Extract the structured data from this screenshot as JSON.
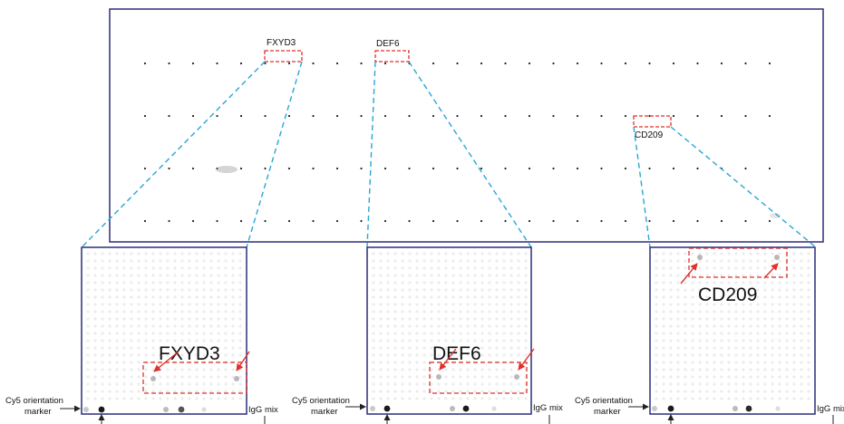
{
  "overview": {
    "labels": {
      "fxyd3": "FXYD3",
      "def6": "DEF6",
      "cd209": "CD209"
    }
  },
  "panels": [
    {
      "id": "fxyd3",
      "label": "FXYD3",
      "side_label": "Cy5 orientation marker",
      "side_label_lines": [
        "Cy5 orientation",
        "marker"
      ],
      "bottom_label": "IgG mix"
    },
    {
      "id": "def6",
      "label": "DEF6",
      "side_label": "Cy5 orientation marker",
      "side_label_lines": [
        "Cy5 orientation",
        "marker"
      ],
      "bottom_label": "IgG mix"
    },
    {
      "id": "cd209",
      "label": "CD209",
      "side_label": "Cy5 orientation marker",
      "side_label_lines": [
        "Cy5 orientation",
        "marker"
      ],
      "bottom_label": "IgG mix"
    }
  ],
  "colors": {
    "frame": "#2b2d7a",
    "zoom_line": "#29a6d8",
    "highlight_box": "#e0302a",
    "pointer_arrow": "#e0302a"
  }
}
